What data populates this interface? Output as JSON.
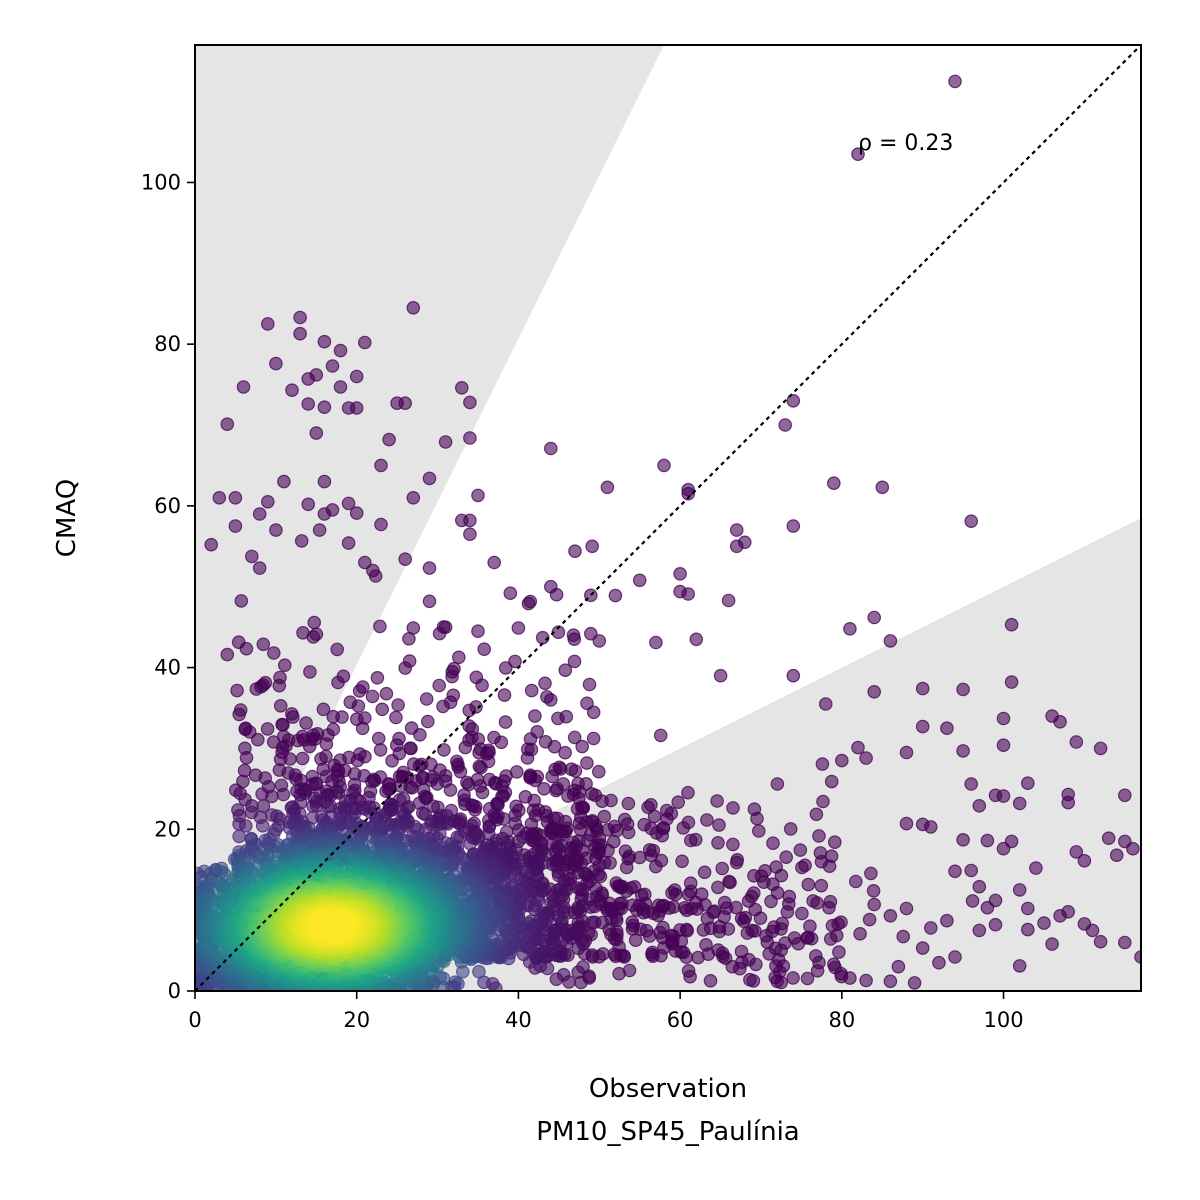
{
  "chart_data": {
    "type": "scatter",
    "title": "",
    "xlabel": "Observation",
    "xlabel_sub": "PM10_SP45_Paulínia",
    "ylabel": "CMAQ",
    "xlim": [
      0,
      117
    ],
    "ylim": [
      0,
      117
    ],
    "x_ticks": [
      0,
      20,
      40,
      60,
      80,
      100
    ],
    "y_ticks": [
      0,
      20,
      40,
      60,
      80,
      100
    ],
    "grid": false,
    "legend": "none",
    "annotation": {
      "text": "ρ = 0.23",
      "x": 82,
      "y": 104
    },
    "reference_line": {
      "style": "dotted",
      "from": [
        0,
        0
      ],
      "to": [
        117,
        117
      ],
      "color": "#000000"
    },
    "shaded_bands": [
      {
        "polygon": [
          [
            0,
            0
          ],
          [
            58,
            117
          ],
          [
            0,
            117
          ]
        ],
        "color": "#e5e5e5"
      },
      {
        "polygon": [
          [
            0,
            0
          ],
          [
            117,
            58.5
          ],
          [
            117,
            0
          ]
        ],
        "color": "#e5e5e5"
      }
    ],
    "colormap": "viridis",
    "point_alpha": 0.6,
    "n_points_approx": 5200,
    "density_peak": {
      "x": 17,
      "y": 8
    },
    "outlier_points": [
      [
        94,
        112.5
      ],
      [
        82,
        103.5
      ],
      [
        27,
        84.5
      ],
      [
        13,
        83.3
      ],
      [
        9,
        82.5
      ],
      [
        13,
        81.3
      ],
      [
        16,
        80.3
      ],
      [
        21,
        80.2
      ],
      [
        18,
        79.2
      ],
      [
        10,
        77.6
      ],
      [
        17,
        77.3
      ],
      [
        15,
        76.2
      ],
      [
        20,
        76
      ],
      [
        14,
        75.7
      ],
      [
        6,
        74.7
      ],
      [
        12,
        74.3
      ],
      [
        33,
        74.6
      ],
      [
        18,
        74.7
      ],
      [
        25,
        72.7
      ],
      [
        26,
        72.7
      ],
      [
        34,
        72.8
      ],
      [
        14,
        72.6
      ],
      [
        16,
        72.2
      ],
      [
        19,
        72.1
      ],
      [
        20,
        72.1
      ],
      [
        74,
        73
      ],
      [
        4,
        70.1
      ],
      [
        73,
        70
      ],
      [
        15,
        69
      ],
      [
        24,
        68.2
      ],
      [
        34,
        68.4
      ],
      [
        31,
        67.9
      ],
      [
        44,
        67.1
      ],
      [
        23,
        65
      ],
      [
        58,
        65
      ],
      [
        11,
        63
      ],
      [
        16,
        63
      ],
      [
        29,
        63.4
      ],
      [
        79,
        62.8
      ],
      [
        85,
        62.3
      ],
      [
        51,
        62.3
      ],
      [
        61,
        62
      ],
      [
        61,
        61.5
      ],
      [
        3,
        61
      ],
      [
        5,
        61
      ],
      [
        27,
        61
      ],
      [
        35,
        61.3
      ],
      [
        9,
        60.5
      ],
      [
        14,
        60.2
      ],
      [
        19,
        60.3
      ],
      [
        17,
        59.5
      ],
      [
        8,
        59
      ],
      [
        16,
        59
      ],
      [
        20,
        59.1
      ],
      [
        33,
        58.2
      ],
      [
        34,
        58.2
      ],
      [
        96,
        58.1
      ],
      [
        74,
        57.5
      ],
      [
        10,
        57
      ],
      [
        23,
        57.7
      ],
      [
        5,
        57.5
      ],
      [
        34,
        56.5
      ],
      [
        67,
        57
      ],
      [
        68,
        55.5
      ],
      [
        67,
        55
      ],
      [
        2,
        55.2
      ],
      [
        19,
        55.4
      ],
      [
        47,
        54.4
      ],
      [
        21,
        53
      ],
      [
        26,
        53.4
      ],
      [
        22,
        52
      ],
      [
        29,
        52.3
      ],
      [
        8,
        52.3
      ],
      [
        37,
        53
      ],
      [
        60,
        51.6
      ],
      [
        55,
        50.8
      ],
      [
        44,
        50
      ],
      [
        52,
        48.9
      ],
      [
        60,
        49.4
      ],
      [
        61,
        49.1
      ],
      [
        66,
        48.3
      ],
      [
        29,
        48.2
      ],
      [
        39,
        49.2
      ],
      [
        31,
        45
      ],
      [
        27,
        44.9
      ],
      [
        84,
        46.2
      ],
      [
        81,
        44.8
      ],
      [
        101,
        45.3
      ],
      [
        86,
        43.3
      ],
      [
        62,
        43.5
      ],
      [
        35,
        44.5
      ],
      [
        40,
        44.9
      ],
      [
        43,
        43.7
      ],
      [
        50,
        43.3
      ],
      [
        57,
        43.1
      ],
      [
        4,
        41.6
      ],
      [
        65,
        39
      ],
      [
        74,
        39
      ],
      [
        78,
        35.5
      ],
      [
        84,
        37
      ],
      [
        90,
        37.4
      ],
      [
        95,
        37.3
      ],
      [
        101,
        38.2
      ],
      [
        100,
        33.7
      ],
      [
        106,
        34
      ],
      [
        107,
        33.3
      ],
      [
        109,
        30.8
      ],
      [
        112,
        30
      ],
      [
        93,
        32.5
      ],
      [
        90,
        32.7
      ],
      [
        100,
        30.4
      ],
      [
        88,
        29.5
      ],
      [
        95,
        29.7
      ],
      [
        82,
        30.1
      ],
      [
        83,
        28.8
      ],
      [
        80,
        28.5
      ],
      [
        96,
        25.6
      ],
      [
        103,
        25.7
      ],
      [
        99,
        24.2
      ],
      [
        100,
        24.1
      ],
      [
        108,
        24.3
      ],
      [
        115,
        24.2
      ],
      [
        108,
        23.3
      ],
      [
        102,
        23.2
      ],
      [
        97,
        22.9
      ],
      [
        90,
        20.6
      ],
      [
        91,
        20.3
      ],
      [
        88,
        20.7
      ],
      [
        95,
        18.7
      ],
      [
        98,
        18.6
      ],
      [
        100,
        17.6
      ],
      [
        101,
        18.5
      ],
      [
        113,
        18.9
      ],
      [
        115,
        18.5
      ],
      [
        116,
        17.6
      ],
      [
        114,
        16.8
      ],
      [
        109,
        17.2
      ],
      [
        104,
        15.2
      ],
      [
        110,
        16.1
      ],
      [
        94,
        14.8
      ],
      [
        96,
        14.9
      ],
      [
        97,
        12.9
      ],
      [
        102,
        12.5
      ],
      [
        99,
        11.2
      ],
      [
        103,
        10.2
      ],
      [
        98,
        10.3
      ],
      [
        107,
        9.3
      ],
      [
        108,
        9.8
      ],
      [
        110,
        8.3
      ],
      [
        112,
        6.1
      ],
      [
        111,
        7.5
      ],
      [
        115,
        6
      ],
      [
        117,
        4.2
      ],
      [
        105,
        8.4
      ],
      [
        103,
        7.6
      ],
      [
        99,
        8.2
      ],
      [
        97,
        7.5
      ],
      [
        93,
        8.7
      ],
      [
        91,
        7.8
      ],
      [
        88,
        10.2
      ],
      [
        86,
        9.3
      ],
      [
        84,
        10.7
      ],
      [
        106,
        5.8
      ],
      [
        102,
        3.1
      ],
      [
        94,
        4.2
      ],
      [
        92,
        3.5
      ],
      [
        90,
        5.3
      ],
      [
        87,
        3
      ],
      [
        86,
        1.2
      ],
      [
        89,
        1
      ],
      [
        83,
        1.3
      ],
      [
        81,
        1.6
      ],
      [
        79,
        3.3
      ],
      [
        77,
        2.5
      ],
      [
        72,
        1.2
      ]
    ]
  }
}
